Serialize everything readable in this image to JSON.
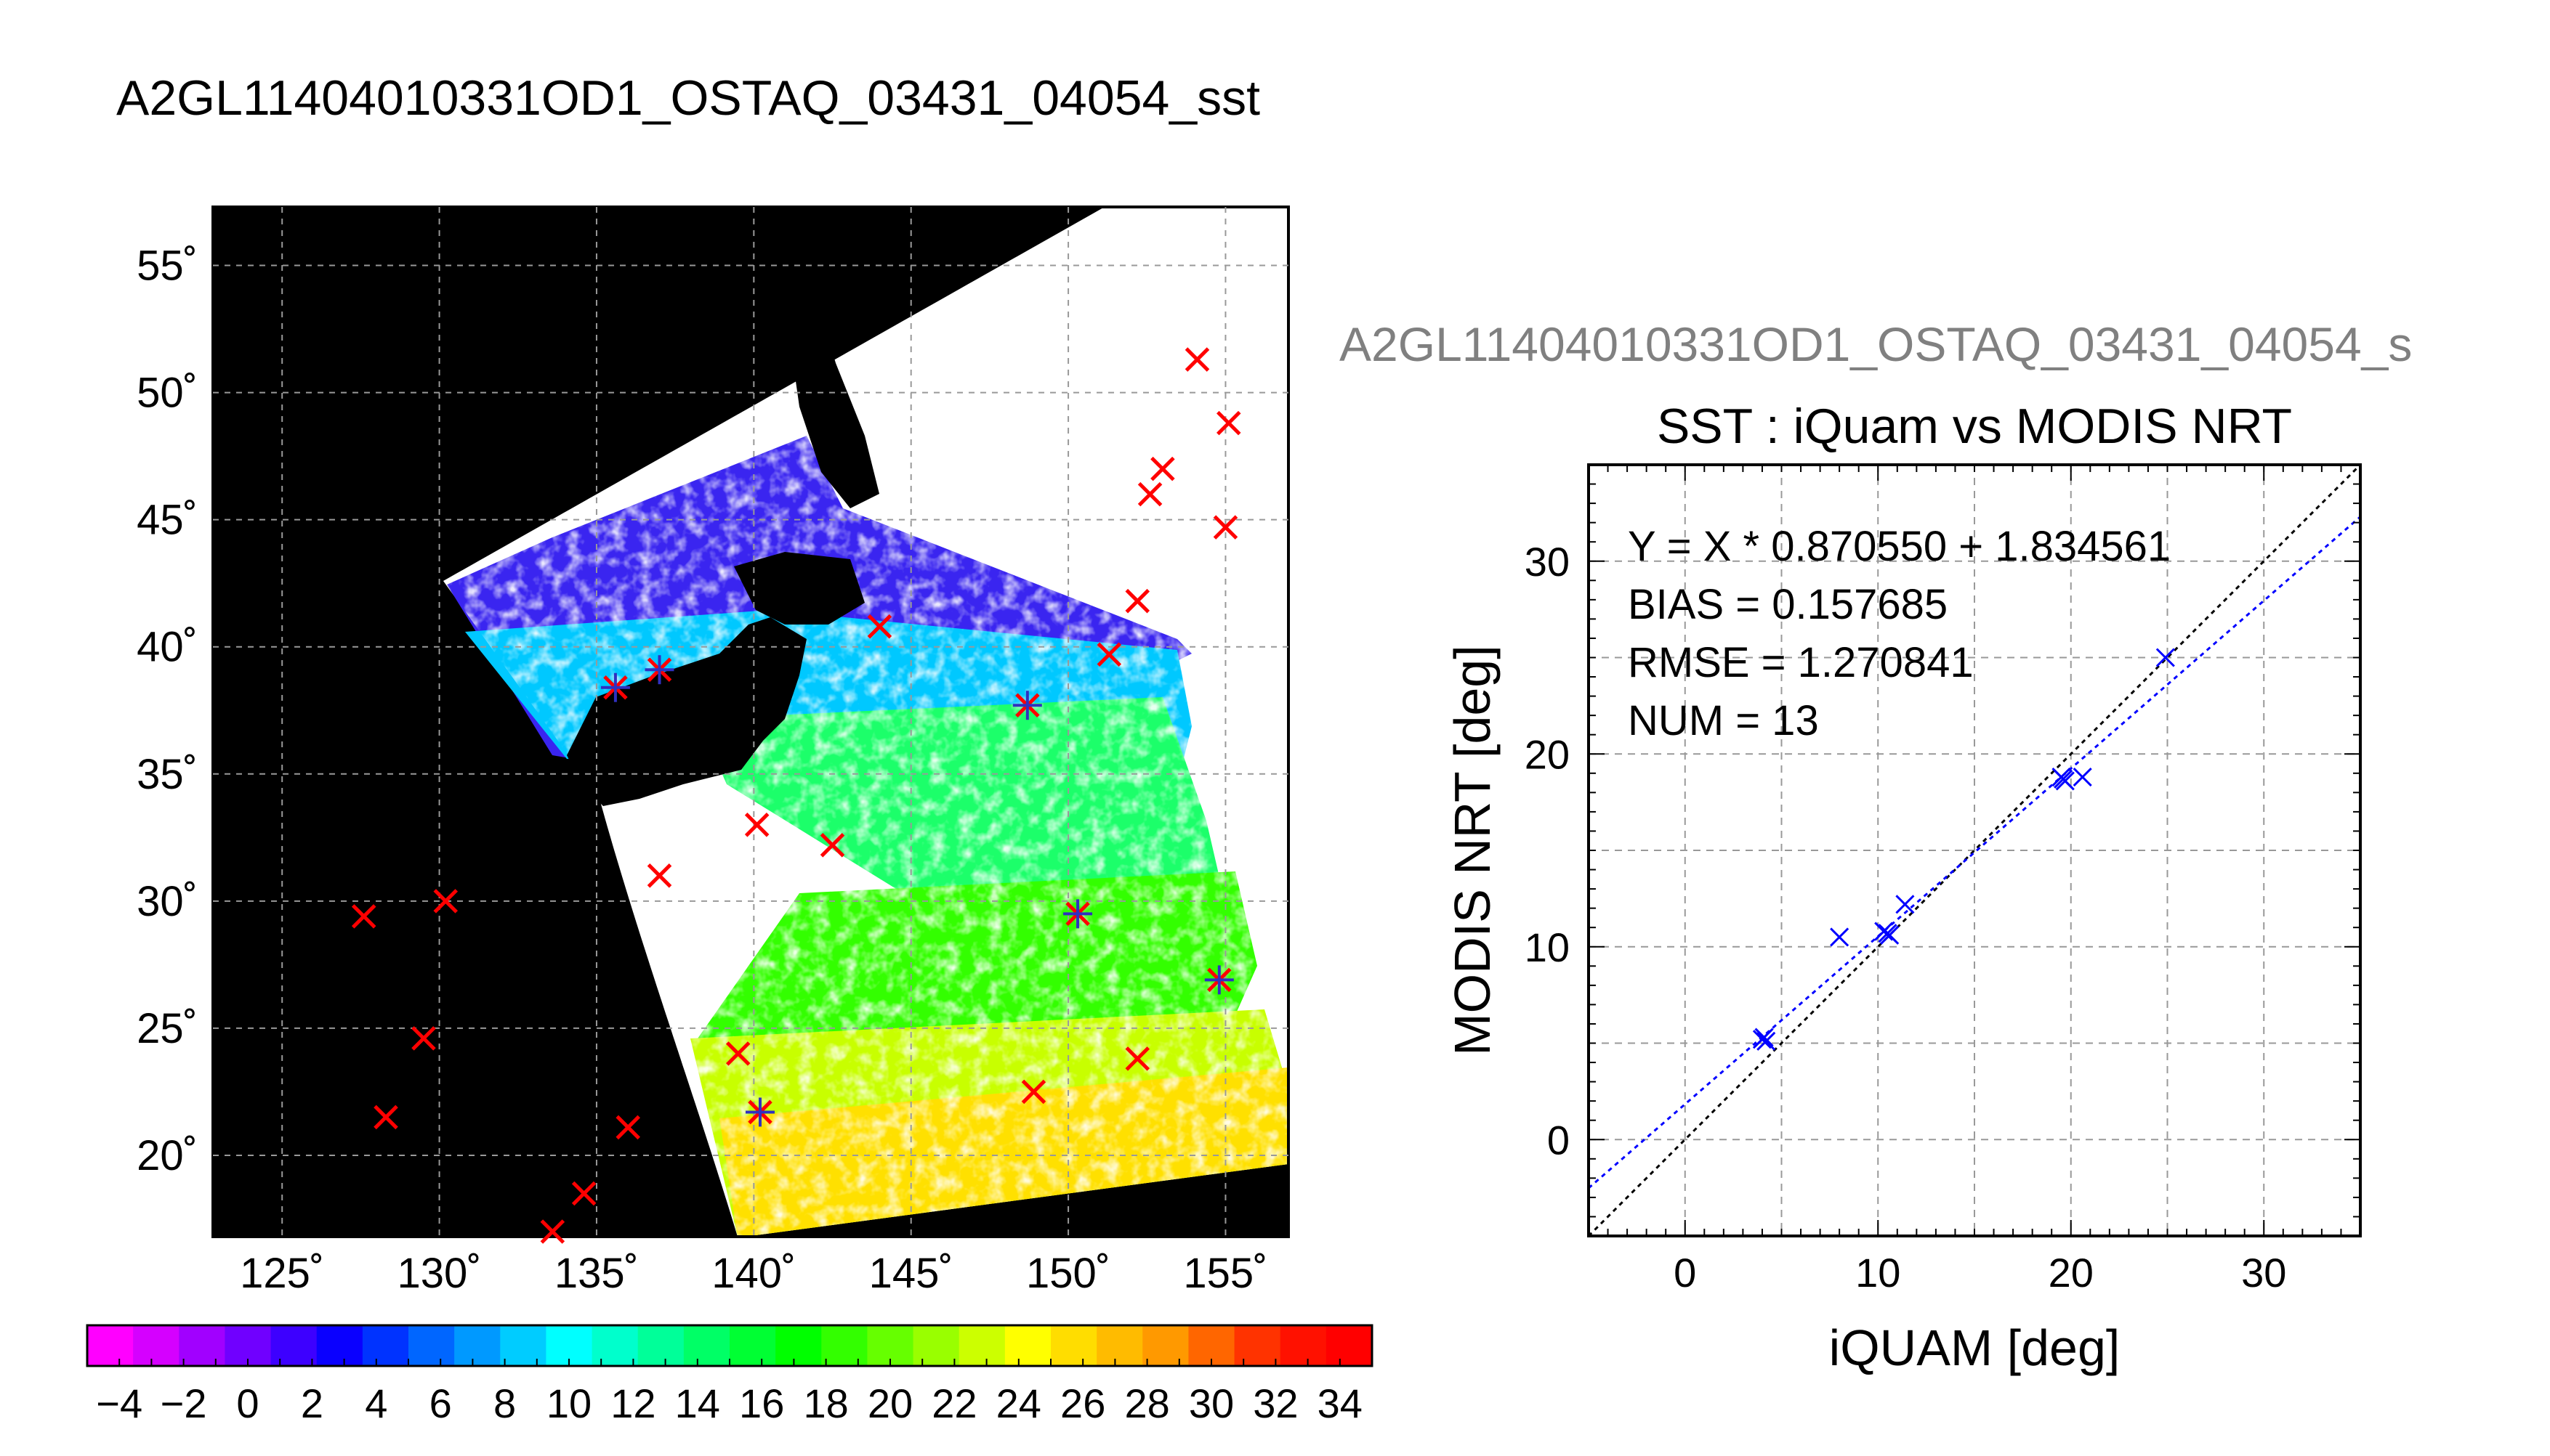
{
  "figure_title": "A2GL11404010331OD1_OSTAQ_03431_04054_sst",
  "scatter_header": "A2GL11404010331OD1_OSTAQ_03431_04054_s",
  "map": {
    "lon_ticks": [
      125,
      130,
      135,
      140,
      145,
      150,
      155
    ],
    "lat_ticks": [
      20,
      25,
      30,
      35,
      40,
      45,
      50,
      55
    ],
    "lon_labels": [
      "125˚",
      "130˚",
      "135˚",
      "140˚",
      "145˚",
      "150˚",
      "155˚"
    ],
    "lat_labels": [
      "20˚",
      "25˚",
      "30˚",
      "35˚",
      "40˚",
      "45˚",
      "50˚",
      "55˚"
    ],
    "lon_range": [
      122.8,
      157.0
    ],
    "lat_range": [
      16.8,
      57.3
    ],
    "red_markers": [
      [
        127.6,
        29.4
      ],
      [
        130.2,
        30.0
      ],
      [
        129.5,
        24.6
      ],
      [
        128.3,
        21.5
      ],
      [
        133.6,
        17.0
      ],
      [
        134.6,
        18.5
      ],
      [
        136.0,
        21.1
      ],
      [
        137.0,
        31.0
      ],
      [
        140.1,
        33.0
      ],
      [
        139.5,
        24.0
      ],
      [
        142.5,
        32.2
      ],
      [
        152.2,
        41.8
      ],
      [
        151.3,
        39.7
      ],
      [
        152.6,
        46.0
      ],
      [
        153.0,
        47.0
      ],
      [
        154.1,
        51.3
      ],
      [
        155.1,
        48.8
      ],
      [
        155.0,
        44.7
      ],
      [
        152.2,
        23.8
      ],
      [
        148.9,
        22.5
      ],
      [
        150.3,
        29.5
      ],
      [
        148.7,
        37.7
      ],
      [
        144.0,
        40.8
      ],
      [
        137.0,
        39.1
      ],
      [
        135.6,
        38.4
      ],
      [
        154.8,
        26.9
      ],
      [
        140.2,
        21.7
      ]
    ],
    "blue_markers": [
      [
        135.6,
        38.4
      ],
      [
        137.0,
        39.1
      ],
      [
        148.7,
        37.7
      ],
      [
        150.3,
        29.5
      ],
      [
        154.8,
        26.9
      ],
      [
        140.2,
        21.7
      ]
    ]
  },
  "colorbar": {
    "labels": [
      "−4",
      "−2",
      "0",
      "2",
      "4",
      "6",
      "8",
      "10",
      "12",
      "14",
      "16",
      "18",
      "20",
      "22",
      "24",
      "26",
      "28",
      "30",
      "32",
      "34"
    ],
    "min": -5,
    "max": 35,
    "colors": [
      "#ff00ff",
      "#d500ff",
      "#a100ff",
      "#7000ff",
      "#3d00ff",
      "#0a00ff",
      "#0033ff",
      "#0066ff",
      "#0099ff",
      "#00ccff",
      "#00ffff",
      "#00ffcc",
      "#00ff99",
      "#00ff66",
      "#00ff33",
      "#00ff00",
      "#33ff00",
      "#66ff00",
      "#99ff00",
      "#ccff00",
      "#ffff00",
      "#ffdd00",
      "#ffbb00",
      "#ff9900",
      "#ff6600",
      "#ff3300",
      "#ff1100",
      "#ff0000"
    ]
  },
  "chart_data": {
    "type": "scatter",
    "title": "SST : iQuam vs MODIS NRT",
    "xlabel": "iQUAM [deg]",
    "ylabel": "MODIS NRT [deg]",
    "xlim": [
      -5,
      35
    ],
    "ylim": [
      -5,
      35
    ],
    "x_ticks": [
      0,
      10,
      20,
      30
    ],
    "y_ticks": [
      0,
      10,
      20,
      30
    ],
    "grid": true,
    "series": [
      {
        "name": "",
        "x": [
          4.0,
          4.2,
          8.0,
          10.3,
          10.6,
          11.4,
          19.5,
          19.7,
          20.6,
          24.9,
          4.1,
          10.5,
          19.6
        ],
        "y": [
          5.2,
          5.1,
          10.5,
          10.8,
          10.6,
          12.2,
          18.8,
          18.6,
          18.8,
          25.0,
          5.3,
          10.7,
          18.7
        ],
        "color": "#0000ff"
      }
    ],
    "fit_line": {
      "slope": 0.87055,
      "intercept": 1.834561,
      "color": "#0000ff"
    },
    "one_to_one_line": {
      "color": "#000000"
    },
    "annotations": [
      "Y = X * 0.870550 + 1.834561",
      "BIAS = 0.157685",
      "RMSE = 1.270841",
      "NUM = 13"
    ]
  }
}
